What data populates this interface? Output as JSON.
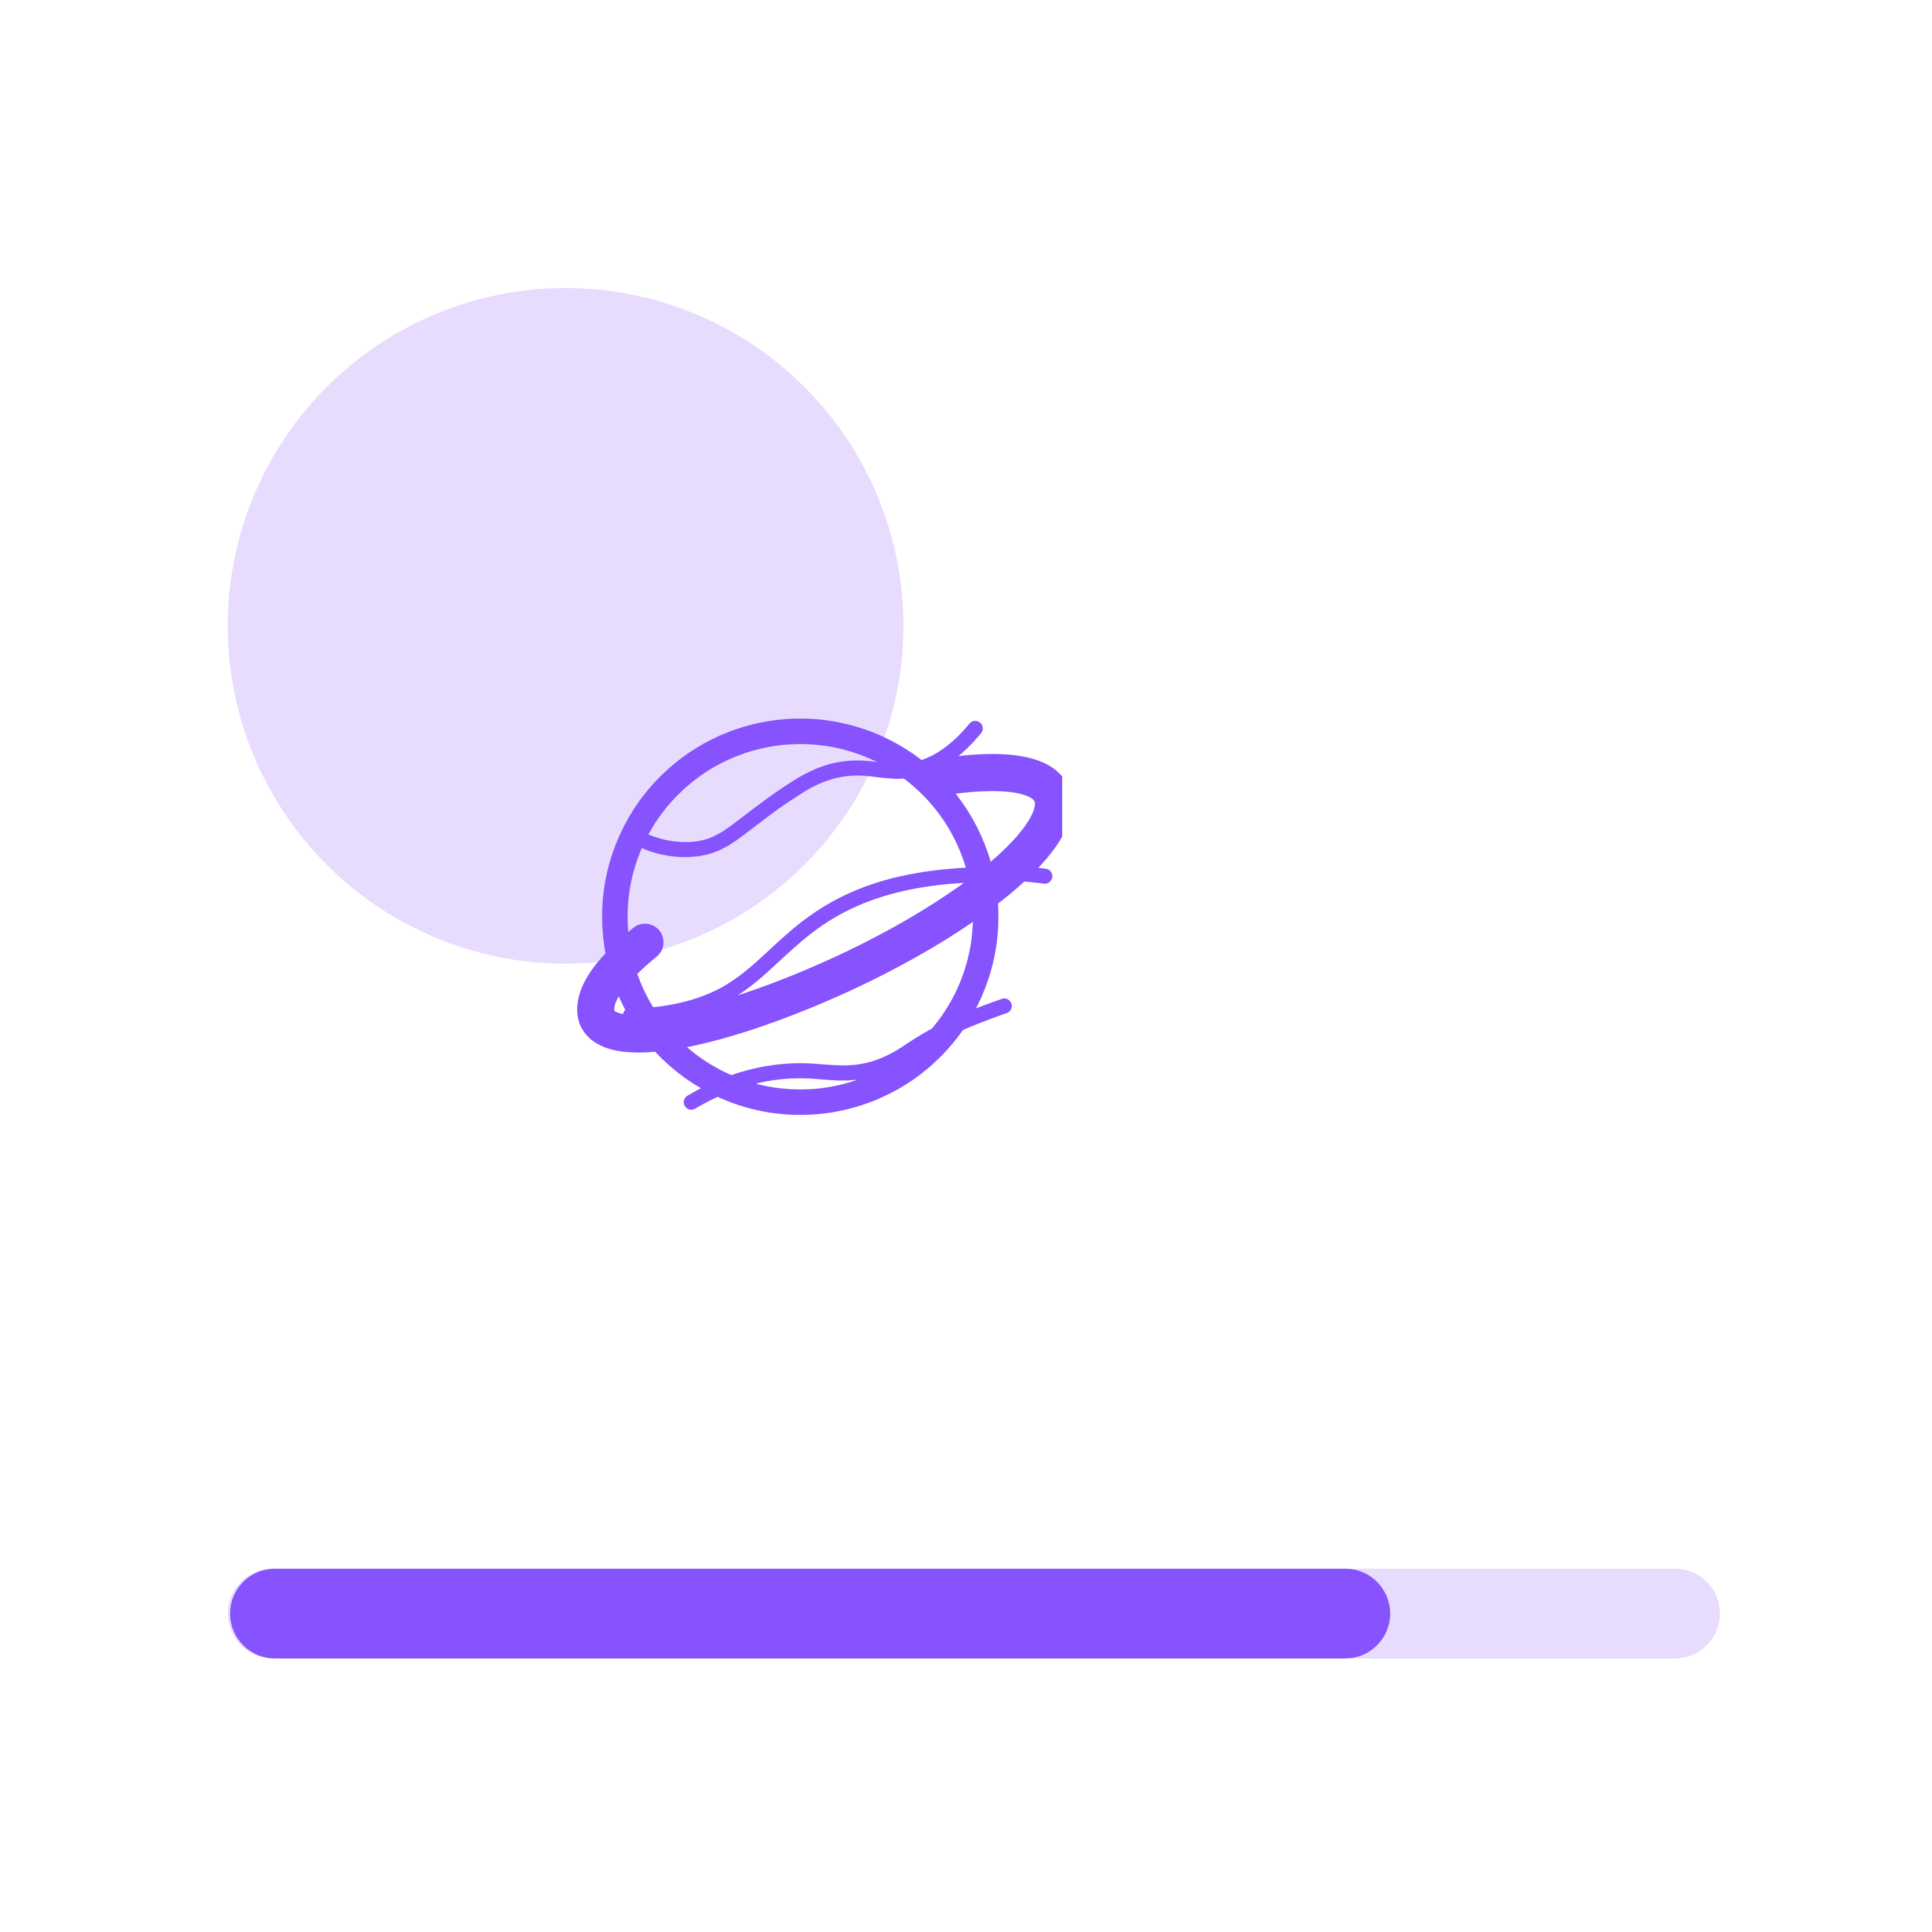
{
  "colors": {
    "accent": "#8753ff",
    "tint": "#e7dcfd",
    "background": "#ffffff"
  },
  "icon": {
    "name": "planet-icon"
  },
  "progress": {
    "value": 0.78
  }
}
